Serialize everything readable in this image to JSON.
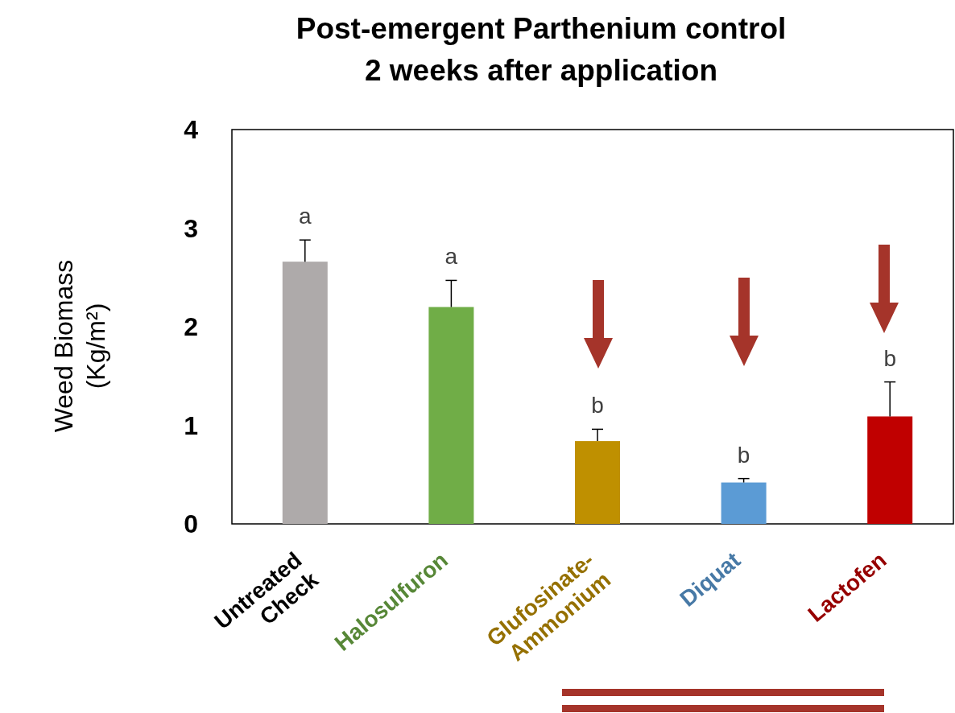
{
  "chart_data": {
    "type": "bar",
    "title": "Post-emergent Parthenium control\n2 weeks after application",
    "ylabel": "Weed Biomass\n(Kg/m²)",
    "categories": [
      "Untreated Check",
      "Halosulfuron",
      "Glufosinate-Ammonium",
      "Diquat",
      "Lactofen"
    ],
    "values": [
      2.66,
      2.2,
      0.84,
      0.42,
      1.09
    ],
    "colors": [
      "#aeaaaa",
      "#70ad47",
      "#bf9000",
      "#5b9bd5",
      "#c00000"
    ],
    "errors": [
      [
        2.66,
        2.88
      ],
      [
        2.2,
        2.47
      ],
      [
        0.84,
        0.96
      ],
      [
        0.42,
        0.46
      ],
      [
        1.09,
        1.44
      ]
    ],
    "ylim": [
      0,
      4
    ],
    "yticks": [
      0,
      1,
      2,
      3,
      4
    ],
    "grid": false,
    "annotations": [
      "a",
      "a",
      "b",
      "b",
      "b"
    ]
  }
}
